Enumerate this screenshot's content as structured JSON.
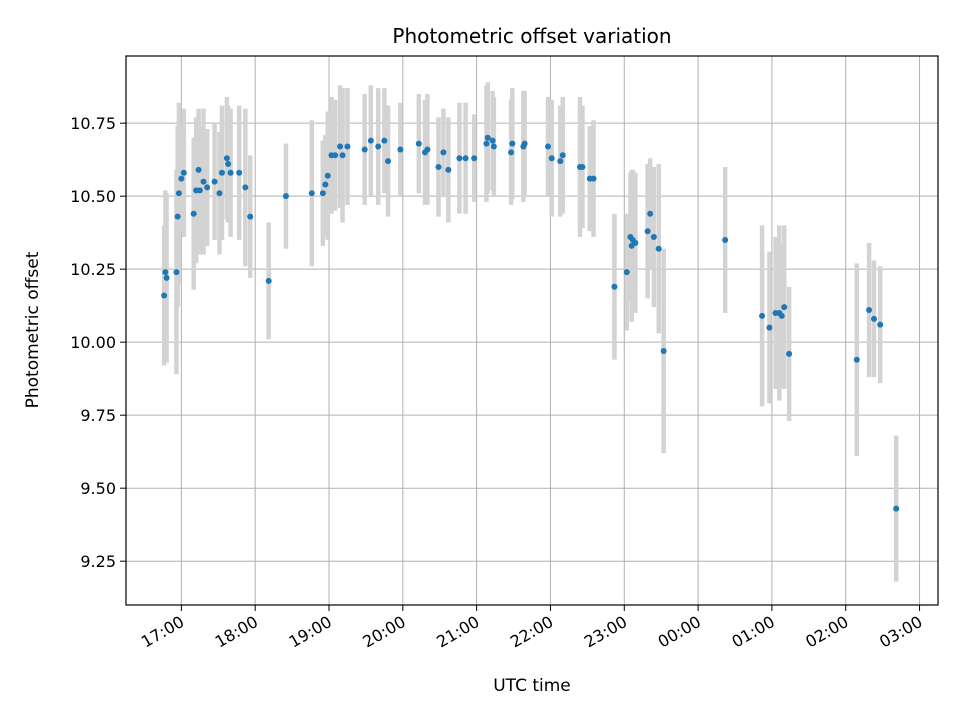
{
  "chart_data": {
    "type": "scatter",
    "title": "Photometric offset variation",
    "xlabel": "UTC time",
    "ylabel": "Photometric offset",
    "grid": true,
    "x_axis": {
      "range": [
        "16:15",
        "03:15"
      ],
      "ticks": [
        "17:00",
        "18:00",
        "19:00",
        "20:00",
        "21:00",
        "22:00",
        "23:00",
        "00:00",
        "01:00",
        "02:00",
        "03:00"
      ]
    },
    "y_axis": {
      "range": [
        9.1,
        10.98
      ],
      "ticks": [
        "9.25",
        "9.50",
        "9.75",
        "10.00",
        "10.25",
        "10.50",
        "10.75"
      ]
    },
    "marker_color": "#1f77b4",
    "errorbar_color": "#d3d3d3",
    "points": [
      {
        "t": "16:46",
        "y": 10.16,
        "e": 0.24
      },
      {
        "t": "16:47",
        "y": 10.24,
        "e": 0.28
      },
      {
        "t": "16:48",
        "y": 10.22,
        "e": 0.29
      },
      {
        "t": "16:56",
        "y": 10.24,
        "e": 0.35
      },
      {
        "t": "16:57",
        "y": 10.43,
        "e": 0.31
      },
      {
        "t": "16:58",
        "y": 10.51,
        "e": 0.31
      },
      {
        "t": "17:00",
        "y": 10.56,
        "e": 0.18
      },
      {
        "t": "17:02",
        "y": 10.58,
        "e": 0.22
      },
      {
        "t": "17:10",
        "y": 10.44,
        "e": 0.26
      },
      {
        "t": "17:12",
        "y": 10.52,
        "e": 0.25
      },
      {
        "t": "17:14",
        "y": 10.59,
        "e": 0.21
      },
      {
        "t": "17:15",
        "y": 10.52,
        "e": 0.22
      },
      {
        "t": "17:18",
        "y": 10.55,
        "e": 0.25
      },
      {
        "t": "17:21",
        "y": 10.53,
        "e": 0.2
      },
      {
        "t": "17:27",
        "y": 10.55,
        "e": 0.2
      },
      {
        "t": "17:31",
        "y": 10.51,
        "e": 0.21
      },
      {
        "t": "17:33",
        "y": 10.58,
        "e": 0.23
      },
      {
        "t": "17:37",
        "y": 10.63,
        "e": 0.21
      },
      {
        "t": "17:38",
        "y": 10.61,
        "e": 0.2
      },
      {
        "t": "17:40",
        "y": 10.58,
        "e": 0.22
      },
      {
        "t": "17:47",
        "y": 10.58,
        "e": 0.23
      },
      {
        "t": "17:52",
        "y": 10.53,
        "e": 0.27
      },
      {
        "t": "17:56",
        "y": 10.43,
        "e": 0.21
      },
      {
        "t": "18:11",
        "y": 10.21,
        "e": 0.2
      },
      {
        "t": "18:25",
        "y": 10.5,
        "e": 0.18
      },
      {
        "t": "18:46",
        "y": 10.51,
        "e": 0.25
      },
      {
        "t": "18:55",
        "y": 10.51,
        "e": 0.18
      },
      {
        "t": "18:57",
        "y": 10.54,
        "e": 0.17
      },
      {
        "t": "18:59",
        "y": 10.57,
        "e": 0.22
      },
      {
        "t": "19:02",
        "y": 10.64,
        "e": 0.2
      },
      {
        "t": "19:05",
        "y": 10.64,
        "e": 0.19
      },
      {
        "t": "19:09",
        "y": 10.67,
        "e": 0.21
      },
      {
        "t": "19:11",
        "y": 10.64,
        "e": 0.23
      },
      {
        "t": "19:15",
        "y": 10.67,
        "e": 0.2
      },
      {
        "t": "19:29",
        "y": 10.66,
        "e": 0.19
      },
      {
        "t": "19:34",
        "y": 10.69,
        "e": 0.19
      },
      {
        "t": "19:40",
        "y": 10.67,
        "e": 0.2
      },
      {
        "t": "19:45",
        "y": 10.69,
        "e": 0.18
      },
      {
        "t": "19:48",
        "y": 10.62,
        "e": 0.19
      },
      {
        "t": "19:58",
        "y": 10.66,
        "e": 0.16
      },
      {
        "t": "20:13",
        "y": 10.68,
        "e": 0.17
      },
      {
        "t": "20:18",
        "y": 10.65,
        "e": 0.18
      },
      {
        "t": "20:20",
        "y": 10.66,
        "e": 0.19
      },
      {
        "t": "20:29",
        "y": 10.6,
        "e": 0.17
      },
      {
        "t": "20:33",
        "y": 10.65,
        "e": 0.15
      },
      {
        "t": "20:37",
        "y": 10.59,
        "e": 0.18
      },
      {
        "t": "20:46",
        "y": 10.63,
        "e": 0.19
      },
      {
        "t": "20:51",
        "y": 10.63,
        "e": 0.19
      },
      {
        "t": "20:58",
        "y": 10.63,
        "e": 0.15
      },
      {
        "t": "21:08",
        "y": 10.68,
        "e": 0.2
      },
      {
        "t": "21:09",
        "y": 10.7,
        "e": 0.19
      },
      {
        "t": "21:13",
        "y": 10.69,
        "e": 0.17
      },
      {
        "t": "21:14",
        "y": 10.67,
        "e": 0.17
      },
      {
        "t": "21:28",
        "y": 10.65,
        "e": 0.18
      },
      {
        "t": "21:29",
        "y": 10.68,
        "e": 0.19
      },
      {
        "t": "21:38",
        "y": 10.67,
        "e": 0.19
      },
      {
        "t": "21:39",
        "y": 10.68,
        "e": 0.18
      },
      {
        "t": "21:58",
        "y": 10.67,
        "e": 0.17
      },
      {
        "t": "22:01",
        "y": 10.63,
        "e": 0.2
      },
      {
        "t": "22:08",
        "y": 10.62,
        "e": 0.19
      },
      {
        "t": "22:10",
        "y": 10.64,
        "e": 0.2
      },
      {
        "t": "22:24",
        "y": 10.6,
        "e": 0.24
      },
      {
        "t": "22:26",
        "y": 10.6,
        "e": 0.21
      },
      {
        "t": "22:32",
        "y": 10.56,
        "e": 0.18
      },
      {
        "t": "22:35",
        "y": 10.56,
        "e": 0.2
      },
      {
        "t": "22:52",
        "y": 10.19,
        "e": 0.25
      },
      {
        "t": "23:02",
        "y": 10.24,
        "e": 0.2
      },
      {
        "t": "23:05",
        "y": 10.36,
        "e": 0.22
      },
      {
        "t": "23:06",
        "y": 10.33,
        "e": 0.26
      },
      {
        "t": "23:07",
        "y": 10.35,
        "e": 0.24
      },
      {
        "t": "23:09",
        "y": 10.34,
        "e": 0.24
      },
      {
        "t": "23:19",
        "y": 10.38,
        "e": 0.23
      },
      {
        "t": "23:21",
        "y": 10.44,
        "e": 0.19
      },
      {
        "t": "23:24",
        "y": 10.36,
        "e": 0.24
      },
      {
        "t": "23:28",
        "y": 10.32,
        "e": 0.29
      },
      {
        "t": "23:32",
        "y": 9.97,
        "e": 0.35
      },
      {
        "t": "00:22",
        "y": 10.35,
        "e": 0.25
      },
      {
        "t": "00:52",
        "y": 10.09,
        "e": 0.31
      },
      {
        "t": "00:58",
        "y": 10.05,
        "e": 0.26
      },
      {
        "t": "01:03",
        "y": 10.1,
        "e": 0.26
      },
      {
        "t": "01:06",
        "y": 10.1,
        "e": 0.3
      },
      {
        "t": "01:08",
        "y": 10.09,
        "e": 0.25
      },
      {
        "t": "01:10",
        "y": 10.12,
        "e": 0.28
      },
      {
        "t": "01:14",
        "y": 9.96,
        "e": 0.23
      },
      {
        "t": "02:09",
        "y": 9.94,
        "e": 0.33
      },
      {
        "t": "02:19",
        "y": 10.11,
        "e": 0.23
      },
      {
        "t": "02:23",
        "y": 10.08,
        "e": 0.2
      },
      {
        "t": "02:28",
        "y": 10.06,
        "e": 0.2
      },
      {
        "t": "02:41",
        "y": 9.43,
        "e": 0.25
      }
    ]
  }
}
